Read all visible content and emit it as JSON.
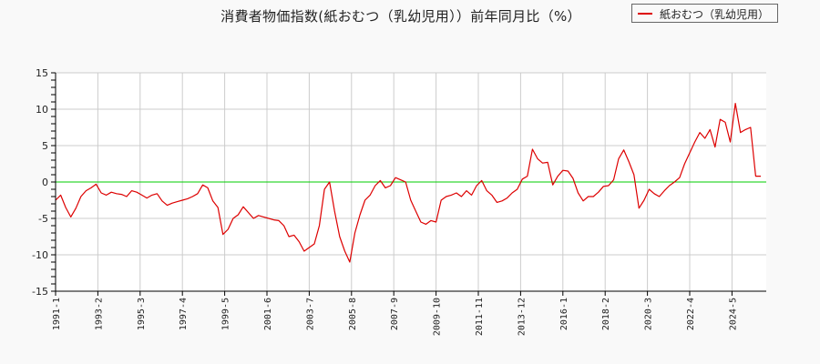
{
  "title": "消費者物価指数(紙おむつ（乳幼児用））前年同月比（%）",
  "legend": {
    "label": "紙おむつ（乳幼児用）",
    "color": "#dd0000"
  },
  "chart_data": {
    "type": "line",
    "title": "消費者物価指数(紙おむつ（乳幼児用））前年同月比（%）",
    "xlabel": "",
    "ylabel": "",
    "ylim": [
      -15,
      15
    ],
    "yticks": [
      15,
      10,
      5,
      0,
      -5,
      -10,
      -15
    ],
    "xticks": [
      "1991-1",
      "1993-2",
      "1995-3",
      "1997-4",
      "1999-5",
      "2001-6",
      "2003-7",
      "2005-8",
      "2007-9",
      "2009-10",
      "2011-11",
      "2013-12",
      "2016-1",
      "2018-2",
      "2020-3",
      "2022-4",
      "2024-5"
    ],
    "grid": true,
    "legend_position": "top-right",
    "reference_line": {
      "y": 0,
      "color": "#00cc00"
    },
    "series": [
      {
        "name": "紙おむつ（乳幼児用）",
        "color": "#dd0000",
        "start": "1991-1",
        "step_months": 3,
        "values": [
          -2.5,
          -1.8,
          -3.5,
          -4.8,
          -3.6,
          -2.0,
          -1.2,
          -0.8,
          -0.3,
          -1.5,
          -1.8,
          -1.4,
          -1.6,
          -1.7,
          -2.0,
          -1.2,
          -1.4,
          -1.8,
          -2.2,
          -1.8,
          -1.6,
          -2.6,
          -3.2,
          -2.9,
          -2.7,
          -2.5,
          -2.3,
          -2.0,
          -1.6,
          -0.4,
          -0.8,
          -2.6,
          -3.5,
          -7.2,
          -6.5,
          -5.0,
          -4.5,
          -3.4,
          -4.2,
          -5.0,
          -4.6,
          -4.8,
          -5.0,
          -5.2,
          -5.3,
          -6.0,
          -7.5,
          -7.3,
          -8.2,
          -9.5,
          -9.0,
          -8.5,
          -6.0,
          -1.0,
          0.0,
          -4.0,
          -7.5,
          -9.5,
          -11.0,
          -7.0,
          -4.5,
          -2.5,
          -1.8,
          -0.5,
          0.2,
          -0.8,
          -0.5,
          0.6,
          0.3,
          0.0,
          -2.5,
          -4.0,
          -5.5,
          -5.8,
          -5.3,
          -5.5,
          -2.5,
          -2.0,
          -1.8,
          -1.5,
          -2.0,
          -1.2,
          -1.8,
          -0.5,
          0.2,
          -1.2,
          -1.8,
          -2.8,
          -2.6,
          -2.2,
          -1.5,
          -1.0,
          0.4,
          0.8,
          4.5,
          3.2,
          2.6,
          2.7,
          -0.4,
          0.8,
          1.6,
          1.5,
          0.5,
          -1.5,
          -2.6,
          -2.0,
          -2.0,
          -1.4,
          -0.6,
          -0.5,
          0.3,
          3.2,
          4.4,
          2.8,
          1.0,
          -3.6,
          -2.5,
          -1.0,
          -1.6,
          -2.0,
          -1.2,
          -0.5,
          0.0,
          0.6,
          2.5,
          4.0,
          5.5,
          6.8,
          6.0,
          7.2,
          4.8,
          8.6,
          8.2,
          5.5,
          10.8,
          6.8,
          7.2,
          7.5,
          0.8,
          0.8
        ]
      }
    ]
  }
}
